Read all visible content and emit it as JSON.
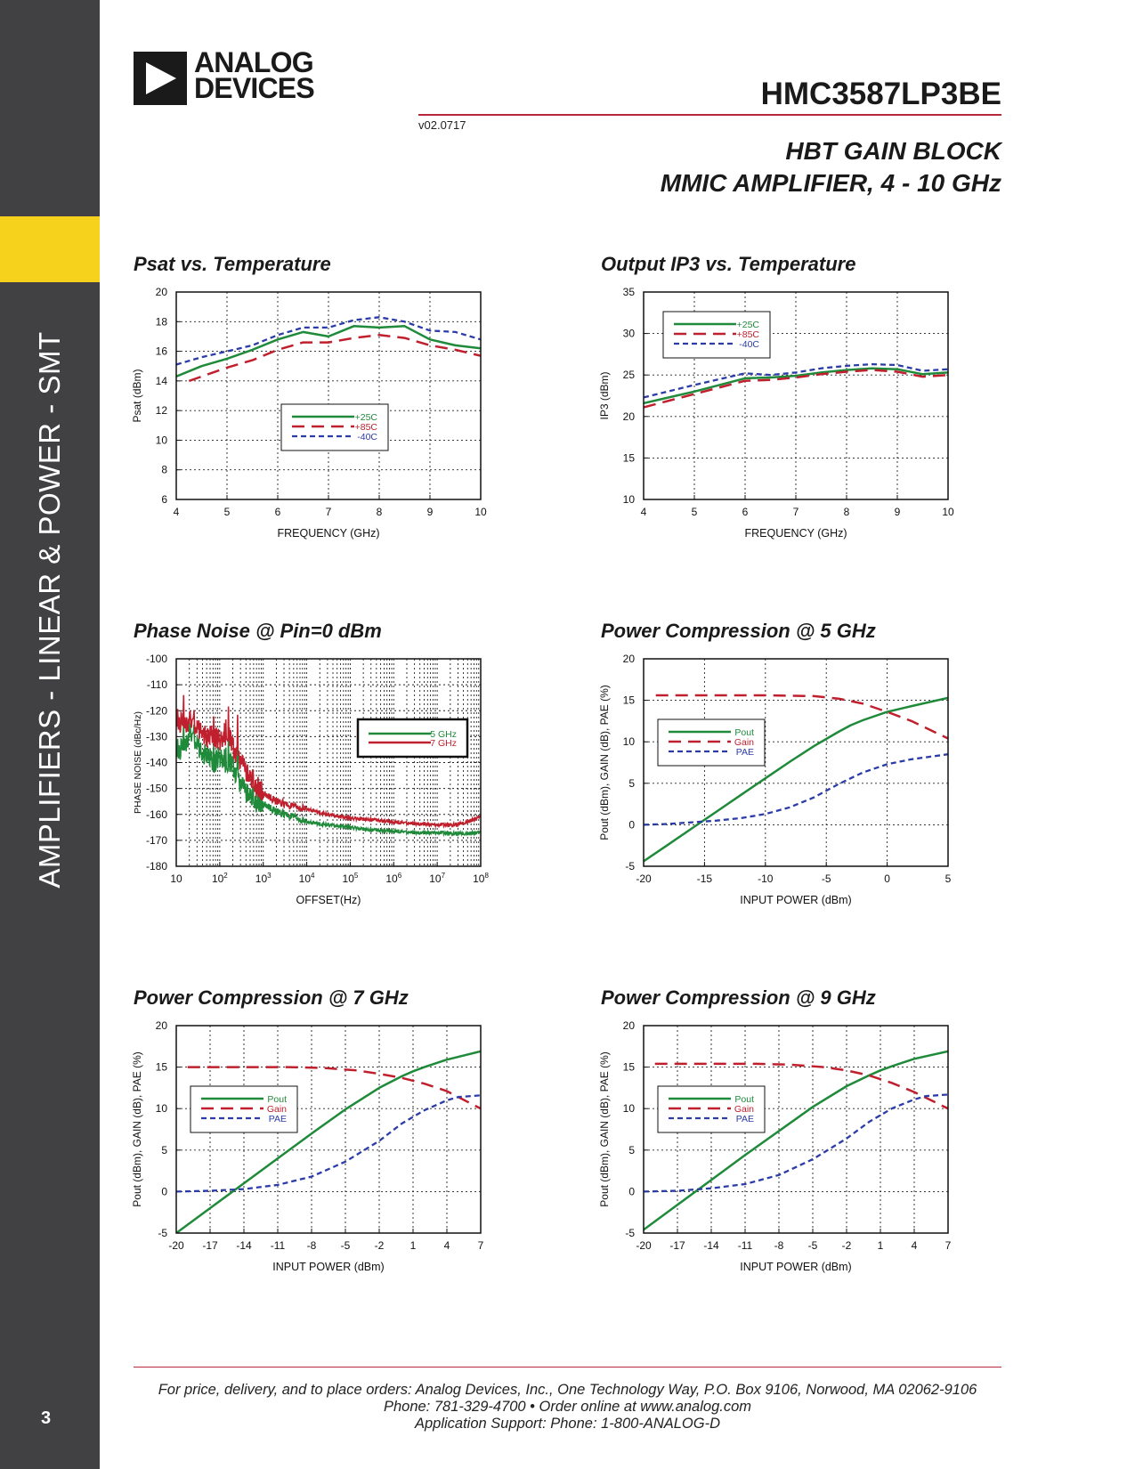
{
  "sidebar": {
    "section_title": "AMPLIFIERS - LINEAR & POWER - SMT",
    "page_number": "3",
    "accent_color": "#f6d21c",
    "bg_color": "#414042"
  },
  "header": {
    "logo_line1": "ANALOG",
    "logo_line2": "DEVICES",
    "part_number": "HMC3587LP3BE",
    "revision": "v02.0717",
    "subtitle_line1": "HBT GAIN BLOCK",
    "subtitle_line2": "MMIC AMPLIFIER, 4 - 10 GHz",
    "rule_color": "#b8283a"
  },
  "colors": {
    "green": "#1f8a3a",
    "red": "#c0202e",
    "blue": "#2b3ca8"
  },
  "chart_data": [
    {
      "id": "psat",
      "title": "Psat vs. Temperature",
      "type": "line",
      "xlabel": "FREQUENCY (GHz)",
      "ylabel": "Psat (dBm)",
      "xlim": [
        4,
        10
      ],
      "ylim": [
        6,
        20
      ],
      "xticks": [
        "4",
        "5",
        "6",
        "7",
        "8",
        "9",
        "10"
      ],
      "yticks": [
        "6",
        "8",
        "10",
        "12",
        "14",
        "16",
        "18",
        "20"
      ],
      "grid": true,
      "legend": "center",
      "series": [
        {
          "name": "+25C",
          "style": "solid",
          "color": "green",
          "x": [
            4,
            4.5,
            5,
            5.5,
            6,
            6.5,
            7,
            7.5,
            8,
            8.5,
            9,
            9.5,
            10
          ],
          "y": [
            14.3,
            15.0,
            15.5,
            16.1,
            16.8,
            17.3,
            17.0,
            17.7,
            17.6,
            17.7,
            16.8,
            16.4,
            16.2
          ]
        },
        {
          "name": "+85C",
          "style": "dash",
          "color": "red",
          "x": [
            4.25,
            4.5,
            5,
            5.5,
            6,
            6.5,
            7,
            7.5,
            8,
            8.5,
            9,
            9.5,
            10
          ],
          "y": [
            14.0,
            14.3,
            14.9,
            15.4,
            16.1,
            16.6,
            16.6,
            16.9,
            17.1,
            16.9,
            16.4,
            16.1,
            15.7
          ]
        },
        {
          "name": "-40C",
          "style": "dot",
          "color": "blue",
          "x": [
            4,
            4.5,
            5,
            5.5,
            6,
            6.5,
            7,
            7.5,
            8,
            8.5,
            9,
            9.5,
            10
          ],
          "y": [
            15.1,
            15.6,
            16.0,
            16.4,
            17.1,
            17.6,
            17.6,
            18.1,
            18.3,
            18.0,
            17.4,
            17.3,
            16.8
          ]
        }
      ]
    },
    {
      "id": "oip3",
      "title": "Output IP3 vs. Temperature",
      "type": "line",
      "xlabel": "FREQUENCY (GHz)",
      "ylabel": "IP3 (dBm)",
      "xlim": [
        4,
        10
      ],
      "ylim": [
        10,
        35
      ],
      "xticks": [
        "4",
        "5",
        "6",
        "7",
        "8",
        "9",
        "10"
      ],
      "yticks": [
        "10",
        "15",
        "20",
        "25",
        "30",
        "35"
      ],
      "grid": true,
      "legend": "top-left",
      "series": [
        {
          "name": "+25C",
          "style": "solid",
          "color": "green",
          "x": [
            4,
            5,
            6,
            6.5,
            7,
            7.5,
            8,
            8.5,
            9,
            9.5,
            10
          ],
          "y": [
            21.6,
            23.0,
            24.6,
            24.7,
            24.9,
            25.3,
            25.6,
            25.8,
            25.7,
            25.1,
            25.3
          ]
        },
        {
          "name": "+85C",
          "style": "dash",
          "color": "red",
          "x": [
            4,
            5,
            6,
            6.5,
            7,
            7.5,
            8,
            8.5,
            9,
            9.5,
            10
          ],
          "y": [
            21.1,
            22.7,
            24.3,
            24.4,
            24.7,
            25.1,
            25.4,
            25.6,
            25.4,
            24.8,
            25.0
          ]
        },
        {
          "name": "-40C",
          "style": "dot",
          "color": "blue",
          "x": [
            4,
            5,
            6,
            6.5,
            7,
            7.5,
            8,
            8.5,
            9,
            9.5,
            10
          ],
          "y": [
            22.3,
            23.8,
            25.2,
            25.0,
            25.3,
            25.8,
            26.1,
            26.3,
            26.2,
            25.5,
            25.7
          ]
        }
      ]
    },
    {
      "id": "phase-noise",
      "title": "Phase Noise @ Pin=0 dBm",
      "type": "line",
      "xscale": "log",
      "xlabel": "OFFSET(Hz)",
      "ylabel": "PHASE NOISE (dBc/Hz)",
      "xlim": [
        10,
        100000000
      ],
      "ylim": [
        -180,
        -100
      ],
      "xticks": [
        "10",
        "10^2",
        "10^3",
        "10^4",
        "10^5",
        "10^6",
        "10^7",
        "10^8"
      ],
      "yticks": [
        "-180",
        "-170",
        "-160",
        "-150",
        "-140",
        "-130",
        "-120",
        "-110",
        "-100"
      ],
      "grid": true,
      "legend": "top-right",
      "series": [
        {
          "name": "5 GHz",
          "style": "solid",
          "color": "green",
          "x": [
            10,
            15,
            20,
            30,
            40,
            50,
            70,
            100,
            150,
            200,
            300,
            500,
            700,
            1000,
            2000,
            5000,
            10000,
            30000,
            100000,
            300000,
            1000000,
            3000000,
            10000000,
            30000000,
            100000000
          ],
          "y": [
            -134,
            -135,
            -128,
            -132,
            -137,
            -136,
            -140,
            -138,
            -140,
            -141,
            -148,
            -152,
            -155,
            -156,
            -159,
            -161,
            -163,
            -164,
            -165,
            -166,
            -166.5,
            -167,
            -167,
            -167.5,
            -167
          ]
        },
        {
          "name": "7 GHz",
          "style": "solid",
          "color": "red",
          "x": [
            10,
            15,
            20,
            30,
            40,
            50,
            70,
            100,
            150,
            200,
            300,
            500,
            700,
            1000,
            2000,
            5000,
            10000,
            30000,
            100000,
            300000,
            1000000,
            3000000,
            10000000,
            30000000,
            100000000
          ],
          "y": [
            -122,
            -126,
            -123,
            -126,
            -128,
            -130,
            -129,
            -132,
            -128,
            -134,
            -139,
            -145,
            -149,
            -152,
            -155,
            -157,
            -158,
            -160,
            -161.5,
            -162,
            -163,
            -163.5,
            -164,
            -164,
            -161
          ]
        }
      ]
    },
    {
      "id": "pc5",
      "title": "Power Compression @ 5 GHz",
      "type": "line",
      "xlabel": "INPUT POWER (dBm)",
      "ylabel": "Pout (dBm), GAIN (dB), PAE (%)",
      "xlim": [
        -20,
        5
      ],
      "ylim": [
        -5,
        20
      ],
      "xticks": [
        "-20",
        "-15",
        "-10",
        "-5",
        "0",
        "5"
      ],
      "yticks": [
        "-5",
        "0",
        "5",
        "10",
        "15",
        "20"
      ],
      "grid": true,
      "legend": "left",
      "series": [
        {
          "name": "Pout",
          "style": "solid",
          "color": "green",
          "x": [
            -20,
            -18,
            -16,
            -14,
            -12,
            -10,
            -8,
            -6,
            -4,
            -3,
            -2,
            0,
            2,
            5
          ],
          "y": [
            -4.4,
            -2.4,
            -0.4,
            1.6,
            3.6,
            5.6,
            7.6,
            9.5,
            11.2,
            12.0,
            12.6,
            13.6,
            14.3,
            15.3
          ]
        },
        {
          "name": "Gain",
          "style": "dash",
          "color": "red",
          "x": [
            -19,
            -15,
            -10,
            -6,
            -4,
            -2,
            0,
            2,
            5
          ],
          "y": [
            15.6,
            15.6,
            15.6,
            15.5,
            15.2,
            14.6,
            13.6,
            12.5,
            10.4
          ]
        },
        {
          "name": "PAE",
          "style": "dot",
          "color": "blue",
          "x": [
            -20,
            -18,
            -16,
            -14,
            -12,
            -10,
            -8,
            -6,
            -4,
            -2,
            0,
            2,
            5
          ],
          "y": [
            0.0,
            0.1,
            0.3,
            0.5,
            0.8,
            1.3,
            2.1,
            3.3,
            4.9,
            6.3,
            7.3,
            7.9,
            8.5
          ]
        }
      ]
    },
    {
      "id": "pc7",
      "title": "Power Compression @ 7 GHz",
      "type": "line",
      "xlabel": "INPUT POWER (dBm)",
      "ylabel": "Pout (dBm), GAIN (dB), PAE (%)",
      "xlim": [
        -20,
        7
      ],
      "ylim": [
        -5,
        20
      ],
      "xticks": [
        "-20",
        "-17",
        "-14",
        "-11",
        "-8",
        "-5",
        "-2",
        "1",
        "4",
        "7"
      ],
      "yticks": [
        "-5",
        "0",
        "5",
        "10",
        "15",
        "20"
      ],
      "grid": true,
      "legend": "left",
      "series": [
        {
          "name": "Pout",
          "style": "solid",
          "color": "green",
          "x": [
            -20,
            -17,
            -14,
            -11,
            -8,
            -5,
            -2,
            0,
            1,
            2,
            4,
            7
          ],
          "y": [
            -5.0,
            -2.0,
            1.0,
            4.0,
            7.0,
            9.9,
            12.5,
            13.9,
            14.5,
            15.0,
            15.9,
            16.9
          ]
        },
        {
          "name": "Gain",
          "style": "dash",
          "color": "red",
          "x": [
            -19,
            -16,
            -13,
            -10,
            -7,
            -4,
            -2,
            0,
            2,
            4,
            7
          ],
          "y": [
            15.0,
            15.0,
            15.0,
            15.0,
            14.9,
            14.6,
            14.2,
            13.7,
            13.0,
            12.1,
            10.0
          ]
        },
        {
          "name": "PAE",
          "style": "dot",
          "color": "blue",
          "x": [
            -20,
            -17,
            -14,
            -11,
            -8,
            -5,
            -2,
            0,
            2,
            4,
            5,
            7
          ],
          "y": [
            0.0,
            0.1,
            0.3,
            0.8,
            1.8,
            3.6,
            6.1,
            8.2,
            9.8,
            11.0,
            11.4,
            11.6
          ]
        }
      ]
    },
    {
      "id": "pc9",
      "title": "Power Compression @ 9 GHz",
      "type": "line",
      "xlabel": "INPUT POWER (dBm)",
      "ylabel": "Pout (dBm), GAIN (dB), PAE (%)",
      "xlim": [
        -20,
        7
      ],
      "ylim": [
        -5,
        20
      ],
      "xticks": [
        "-20",
        "-17",
        "-14",
        "-11",
        "-8",
        "-5",
        "-2",
        "1",
        "4",
        "7"
      ],
      "yticks": [
        "-5",
        "0",
        "5",
        "10",
        "15",
        "20"
      ],
      "grid": true,
      "legend": "left",
      "series": [
        {
          "name": "Pout",
          "style": "solid",
          "color": "green",
          "x": [
            -20,
            -17,
            -14,
            -11,
            -8,
            -5,
            -2,
            0,
            1,
            2,
            4,
            7
          ],
          "y": [
            -4.6,
            -1.6,
            1.4,
            4.4,
            7.3,
            10.2,
            12.7,
            14.0,
            14.6,
            15.1,
            16.0,
            16.9
          ]
        },
        {
          "name": "Gain",
          "style": "dash",
          "color": "red",
          "x": [
            -19,
            -16,
            -13,
            -10,
            -7,
            -4,
            -2,
            0,
            2,
            4,
            7
          ],
          "y": [
            15.4,
            15.4,
            15.4,
            15.4,
            15.3,
            15.0,
            14.6,
            14.0,
            13.1,
            12.0,
            10.0
          ]
        },
        {
          "name": "PAE",
          "style": "dot",
          "color": "blue",
          "x": [
            -20,
            -17,
            -14,
            -11,
            -8,
            -5,
            -2,
            0,
            2,
            4,
            5,
            7
          ],
          "y": [
            0.0,
            0.1,
            0.4,
            0.9,
            2.0,
            3.9,
            6.4,
            8.4,
            10.0,
            11.1,
            11.5,
            11.7
          ]
        }
      ]
    }
  ],
  "footer": {
    "line1": "For price, delivery, and to place orders: Analog Devices, Inc., One Technology Way, P.O. Box 9106, Norwood, MA 02062-9106",
    "line2": "Phone: 781-329-4700 • Order online at www.analog.com",
    "line3": "Application Support: Phone: 1-800-ANALOG-D"
  }
}
